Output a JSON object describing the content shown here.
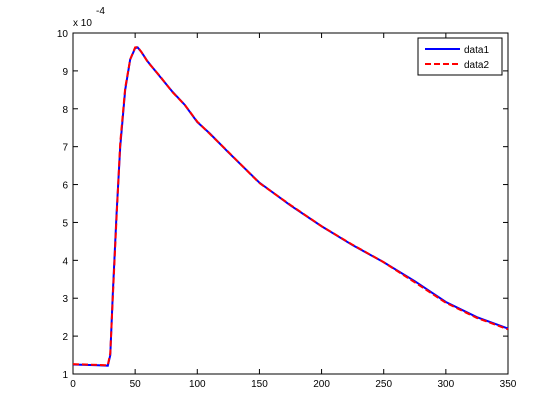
{
  "chart_data": {
    "type": "line",
    "y_multiplier": {
      "base": "x 10",
      "exponent": "-4"
    },
    "x": [
      0,
      10,
      20,
      28,
      30,
      32,
      35,
      38,
      42,
      46,
      50,
      52,
      55,
      60,
      70,
      80,
      90,
      100,
      110,
      125,
      150,
      175,
      200,
      225,
      250,
      275,
      300,
      325,
      350
    ],
    "series": [
      {
        "name": "data1",
        "color": "#0000ff",
        "dashed": false,
        "values": [
          1.25,
          1.24,
          1.23,
          1.22,
          1.5,
          3.1,
          5.2,
          7.0,
          8.5,
          9.3,
          9.6,
          9.62,
          9.5,
          9.25,
          8.85,
          8.45,
          8.1,
          7.65,
          7.35,
          6.85,
          6.05,
          5.45,
          4.9,
          4.4,
          3.95,
          3.45,
          2.9,
          2.5,
          2.2
        ]
      },
      {
        "name": "data2",
        "color": "#ff0000",
        "dashed": true,
        "values": [
          1.26,
          1.25,
          1.24,
          1.23,
          1.55,
          3.0,
          5.1,
          7.1,
          8.55,
          9.3,
          9.62,
          9.63,
          9.5,
          9.24,
          8.86,
          8.44,
          8.1,
          7.66,
          7.34,
          6.86,
          6.04,
          5.46,
          4.9,
          4.41,
          3.95,
          3.42,
          2.88,
          2.48,
          2.18
        ]
      }
    ],
    "xlim": [
      0,
      350
    ],
    "xticks": [
      0,
      50,
      100,
      150,
      200,
      250,
      300,
      350
    ],
    "ylim": [
      1,
      10
    ],
    "yticks": [
      1,
      2,
      3,
      4,
      5,
      6,
      7,
      8,
      9,
      10
    ],
    "legend": "northeast"
  }
}
